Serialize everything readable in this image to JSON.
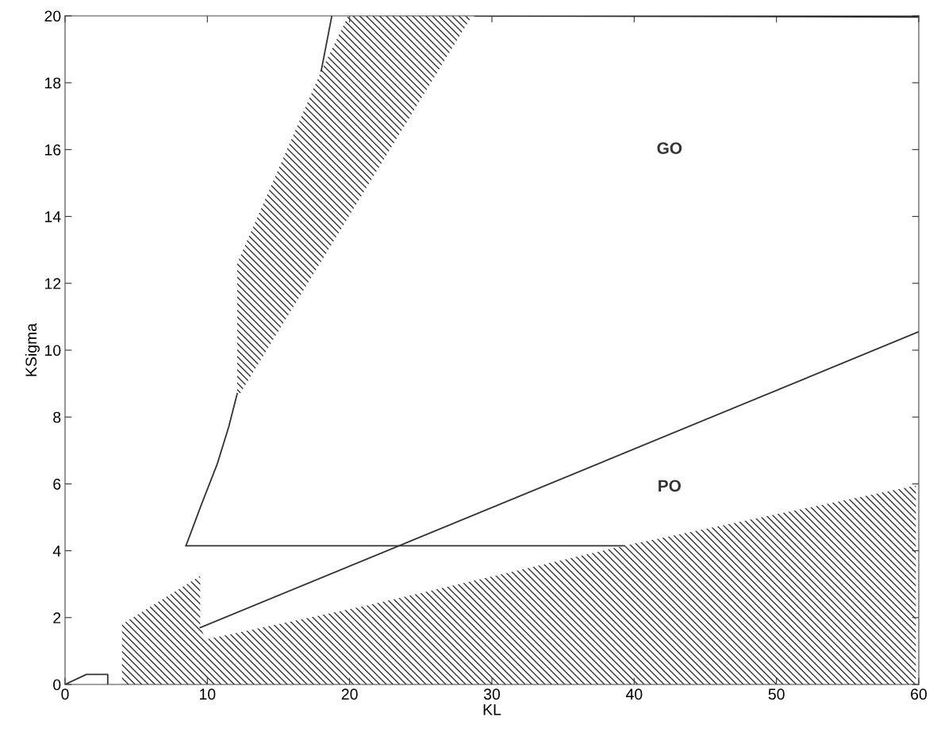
{
  "chart_data": {
    "type": "line",
    "xlabel": "KL",
    "ylabel": "KSigma",
    "xlim": [
      0,
      60
    ],
    "ylim": [
      0,
      20
    ],
    "xticks": [
      0,
      10,
      20,
      30,
      40,
      50,
      60
    ],
    "yticks": [
      0,
      2,
      4,
      6,
      8,
      10,
      12,
      14,
      16,
      18,
      20
    ],
    "grid": false,
    "marker": "none",
    "line_style": "solid",
    "series": [
      {
        "type": "area",
        "color": "#333333",
        "x": [
          12.1,
          12.1,
          18.0,
          19.9,
          28.6,
          12.3
        ],
        "values": [
          8.7,
          12.6,
          18.35,
          20,
          20,
          8.7
        ]
      },
      {
        "type": "area",
        "color": "#333333",
        "x": [
          4.0,
          4.0,
          9.5,
          9.5,
          9.9,
          21.1,
          39.3,
          59.8,
          59.8
        ],
        "values": [
          0,
          1.8,
          3.25,
          1.7,
          1.35,
          2.35,
          4.15,
          5.95,
          0
        ]
      },
      {
        "color": "#333333",
        "x": [
          8.5,
          9.6,
          10.7,
          11.5,
          12.1
        ],
        "values": [
          4.15,
          5.4,
          6.6,
          7.7,
          8.7
        ]
      },
      {
        "color": "#333333",
        "x": [
          18.0,
          18.75
        ],
        "values": [
          18.35,
          20
        ]
      },
      {
        "color": "#333333",
        "x": [
          8.5,
          39.3
        ],
        "values": [
          4.15,
          4.15
        ]
      },
      {
        "color": "#333333",
        "x": [
          9.5,
          60
        ],
        "values": [
          1.7,
          10.55
        ]
      },
      {
        "color": "#111111",
        "x": [
          28.8,
          60
        ],
        "values": [
          20,
          19.97
        ]
      },
      {
        "color": "#333333",
        "x": [
          0,
          1.5,
          3,
          3
        ],
        "values": [
          0,
          0.3,
          0.3,
          0
        ]
      }
    ],
    "annotations": [
      "GO",
      "PO"
    ]
  }
}
